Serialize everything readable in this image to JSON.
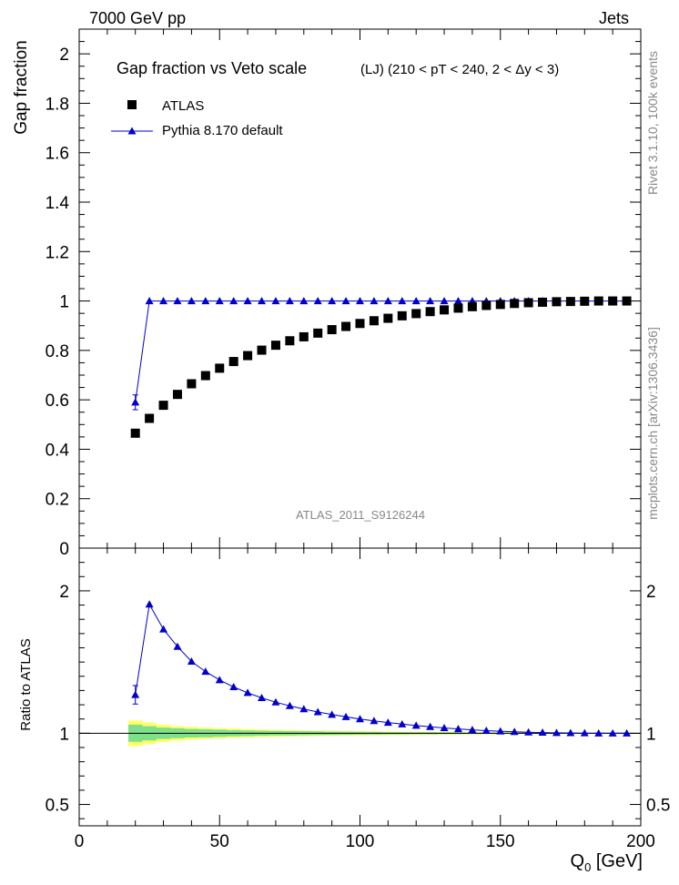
{
  "header": {
    "left": "7000 GeV pp",
    "right": "Jets"
  },
  "side": {
    "rivet": "Rivet 3.1.10,  100k events",
    "mcplots": "mcplots.cern.ch [arXiv:1306.3436]"
  },
  "legend": {
    "title": "Gap fraction vs Veto scale",
    "subtitle": "(LJ) (210 < pT < 240, 2 < Δy < 3)",
    "data_label": "ATLAS",
    "mc_label": "Pythia 8.170 default"
  },
  "watermark": "ATLAS_2011_S9126244",
  "colors": {
    "data": "#000000",
    "mc": "#0000cc",
    "band_inner": "#7fe08a",
    "band_outer": "#ffff66"
  },
  "chart_data": [
    {
      "type": "scatter",
      "panel": "main",
      "ylabel": "Gap fraction",
      "xlabel": "",
      "xlim": [
        0,
        200
      ],
      "ylim": [
        0,
        2.1
      ],
      "yticks": [
        "0",
        "0.2",
        "0.4",
        "0.6",
        "0.8",
        "1",
        "1.2",
        "1.4",
        "1.6",
        "1.8",
        "2"
      ],
      "x": [
        20,
        25,
        30,
        35,
        40,
        45,
        50,
        55,
        60,
        65,
        70,
        75,
        80,
        85,
        90,
        95,
        100,
        105,
        110,
        115,
        120,
        125,
        130,
        135,
        140,
        145,
        150,
        155,
        160,
        165,
        170,
        175,
        180,
        185,
        190,
        195
      ],
      "series": [
        {
          "name": "ATLAS",
          "marker": "square",
          "values": [
            0.465,
            0.525,
            0.578,
            0.622,
            0.665,
            0.698,
            0.728,
            0.755,
            0.779,
            0.801,
            0.821,
            0.839,
            0.855,
            0.87,
            0.884,
            0.897,
            0.909,
            0.92,
            0.93,
            0.94,
            0.949,
            0.957,
            0.964,
            0.971,
            0.977,
            0.982,
            0.986,
            0.99,
            0.993,
            0.995,
            0.997,
            0.998,
            0.999,
            1.0,
            1.0,
            1.0
          ]
        },
        {
          "name": "Pythia 8.170 default",
          "marker": "triangle",
          "values": [
            0.59,
            1.0,
            1.0,
            1.0,
            1.0,
            1.0,
            1.0,
            1.0,
            1.0,
            1.0,
            1.0,
            1.0,
            1.0,
            1.0,
            1.0,
            1.0,
            1.0,
            1.0,
            1.0,
            1.0,
            1.0,
            1.0,
            1.0,
            1.0,
            1.0,
            1.0,
            1.0,
            1.0,
            1.0,
            1.0,
            1.0,
            1.0,
            1.0,
            1.0,
            1.0,
            1.0
          ],
          "errors": [
            0.03,
            0,
            0,
            0,
            0,
            0,
            0,
            0,
            0,
            0,
            0,
            0,
            0,
            0,
            0,
            0,
            0,
            0,
            0,
            0,
            0,
            0,
            0,
            0,
            0,
            0,
            0,
            0,
            0,
            0,
            0,
            0,
            0,
            0,
            0,
            0
          ]
        }
      ]
    },
    {
      "type": "line",
      "panel": "ratio",
      "ylabel": "Ratio to ATLAS",
      "xlabel": "Q0 [GeV]",
      "xlim": [
        0,
        200
      ],
      "ylim": [
        0.35,
        2.3
      ],
      "yticks": [
        "0.5",
        "1",
        "2"
      ],
      "xticks": [
        "0",
        "50",
        "100",
        "150",
        "200"
      ],
      "x": [
        20,
        25,
        30,
        35,
        40,
        45,
        50,
        55,
        60,
        65,
        70,
        75,
        80,
        85,
        90,
        95,
        100,
        105,
        110,
        115,
        120,
        125,
        130,
        135,
        140,
        145,
        150,
        155,
        160,
        165,
        170,
        175,
        180,
        185,
        190,
        195
      ],
      "series": [
        {
          "name": "Pythia 8.170 default / ATLAS",
          "values": [
            1.27,
            1.905,
            1.73,
            1.608,
            1.504,
            1.433,
            1.374,
            1.325,
            1.284,
            1.248,
            1.218,
            1.192,
            1.17,
            1.149,
            1.131,
            1.115,
            1.1,
            1.087,
            1.075,
            1.064,
            1.054,
            1.045,
            1.037,
            1.03,
            1.024,
            1.018,
            1.014,
            1.01,
            1.007,
            1.005,
            1.003,
            1.002,
            1.001,
            1.0,
            1.0,
            1.0
          ],
          "errors": [
            0.065,
            0,
            0,
            0,
            0,
            0,
            0,
            0,
            0,
            0,
            0,
            0,
            0,
            0,
            0,
            0,
            0,
            0,
            0,
            0,
            0,
            0,
            0,
            0,
            0,
            0,
            0,
            0,
            0,
            0,
            0,
            0,
            0,
            0,
            0,
            0
          ]
        }
      ],
      "uncertainty_band": {
        "inner": [
          0.06,
          0.05,
          0.04,
          0.035,
          0.03,
          0.028,
          0.025,
          0.022,
          0.02,
          0.018,
          0.016,
          0.015,
          0.014,
          0.013,
          0.012,
          0.011,
          0.01,
          0.009,
          0.008,
          0.008,
          0.007,
          0.007,
          0.006,
          0.006,
          0.005,
          0.005,
          0.005,
          0.004,
          0.004,
          0.004,
          0.004,
          0.003,
          0.003,
          0.003,
          0.003,
          0.003
        ],
        "outer": [
          0.09,
          0.075,
          0.06,
          0.05,
          0.045,
          0.04,
          0.036,
          0.032,
          0.029,
          0.026,
          0.024,
          0.022,
          0.02,
          0.018,
          0.017,
          0.016,
          0.015,
          0.014,
          0.013,
          0.012,
          0.011,
          0.01,
          0.009,
          0.009,
          0.008,
          0.008,
          0.007,
          0.007,
          0.006,
          0.006,
          0.006,
          0.005,
          0.005,
          0.005,
          0.005,
          0.005
        ]
      }
    }
  ]
}
